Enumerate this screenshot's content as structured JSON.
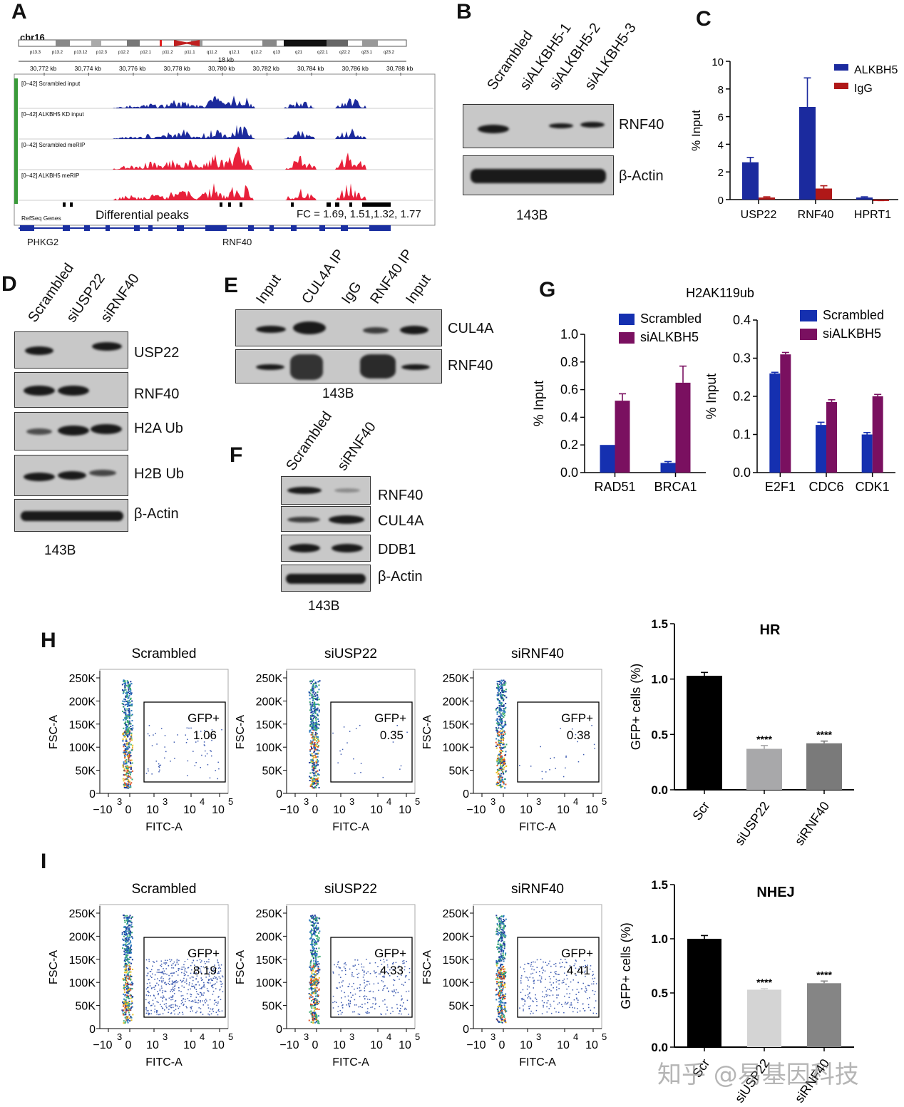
{
  "panels": {
    "A": "A",
    "B": "B",
    "C": "C",
    "D": "D",
    "E": "E",
    "F": "F",
    "G": "G",
    "H": "H",
    "I": "I"
  },
  "panelA": {
    "chrom": "chr16",
    "bands": [
      "p13.3",
      "p13.2",
      "p13.12",
      "p12.3",
      "p12.2",
      "p12.1",
      "p11.2",
      "p11.1",
      "q11.2",
      "q12.1",
      "q12.2",
      "q13",
      "q21",
      "q22.1",
      "q22.2",
      "q23.1",
      "q23.2"
    ],
    "scale": "18 kb",
    "coords": [
      "30,772 kb",
      "30,774 kb",
      "30,776 kb",
      "30,778 kb",
      "30,780 kb",
      "30,782 kb",
      "30,784 kb",
      "30,786 kb",
      "30,788 kb"
    ],
    "tracks": [
      {
        "range": "[0–42]",
        "name": "Scrambled input",
        "color": "#1c2a9c"
      },
      {
        "range": "[0–42]",
        "name": "ALKBH5 KD input",
        "color": "#1c2a9c"
      },
      {
        "range": "[0–42]",
        "name": "Scrambled meRIP",
        "color": "#e8203a"
      },
      {
        "range": "[0–42]",
        "name": "ALKBH5 meRIP",
        "color": "#e8203a"
      }
    ],
    "refseq": "RefSeq Genes",
    "diff_peaks": "Differential peaks",
    "fc": "FC = 1.69, 1.51,1.32,  1.77",
    "genes": [
      "PHKG2",
      "RNF40"
    ]
  },
  "panelB": {
    "lanes": [
      "Scrambled",
      "siALKBH5-1",
      "siALKBH5-2",
      "siALKBH5-3"
    ],
    "blots": [
      "RNF40",
      "β-Actin"
    ],
    "cell": "143B"
  },
  "panelD": {
    "lanes": [
      "Scrambled",
      "siUSP22",
      "siRNF40"
    ],
    "blots": [
      "USP22",
      "RNF40",
      "H2A Ub",
      "H2B Ub",
      "β-Actin"
    ],
    "cell": "143B"
  },
  "panelE": {
    "lanes": [
      "Input",
      "CUL4A IP",
      "IgG",
      "RNF40 IP",
      "Input"
    ],
    "blots": [
      "CUL4A",
      "RNF40"
    ],
    "cell": "143B"
  },
  "panelF": {
    "lanes": [
      "Scrambled",
      "siRNF40"
    ],
    "blots": [
      "RNF40",
      "CUL4A",
      "DDB1",
      "β-Actin"
    ],
    "cell": "143B"
  },
  "flow": {
    "xlabel": "FITC-A",
    "ylabel": "FSC-A",
    "yticks": [
      "250K",
      "200K",
      "150K",
      "100K",
      "50K",
      "0"
    ],
    "xticks": [
      "−10",
      "0",
      "10",
      "10",
      "10"
    ],
    "xexp": [
      "3",
      "",
      "3",
      "4",
      "5"
    ],
    "gate": "GFP+",
    "H": [
      {
        "title": "Scrambled",
        "value": "1.06"
      },
      {
        "title": "siUSP22",
        "value": "0.35"
      },
      {
        "title": "siRNF40",
        "value": "0.38"
      }
    ],
    "I": [
      {
        "title": "Scrambled",
        "value": "8.19"
      },
      {
        "title": "siUSP22",
        "value": "4.33"
      },
      {
        "title": "siRNF40",
        "value": "4.41"
      }
    ]
  },
  "watermark": "知乎 @易基因科技",
  "chart_data": [
    {
      "id": "C",
      "type": "bar",
      "categories": [
        "USP22",
        "RNF40",
        "HPRT1"
      ],
      "series": [
        {
          "name": "ALKBH5",
          "color": "#1b2a9e",
          "values": [
            2.7,
            6.7,
            0.15
          ],
          "errors": [
            0.35,
            2.1,
            0.05
          ]
        },
        {
          "name": "IgG",
          "color": "#b01818",
          "values": [
            0.15,
            0.8,
            -0.1
          ],
          "errors": [
            0.05,
            0.2,
            0.03
          ]
        }
      ],
      "ylabel": "% Input",
      "ylim": [
        0,
        10
      ],
      "yticks": [
        "0",
        "2",
        "4",
        "6",
        "8",
        "10"
      ],
      "legend": "top-right"
    },
    {
      "id": "G1",
      "type": "bar",
      "title": "H2AK119ub",
      "categories": [
        "RAD51",
        "BRCA1"
      ],
      "series": [
        {
          "name": "Scrambled",
          "color": "#1530b0",
          "values": [
            0.2,
            0.07
          ],
          "errors": [
            0,
            0.01
          ]
        },
        {
          "name": "siALKBH5",
          "color": "#7a1060",
          "values": [
            0.52,
            0.65
          ],
          "errors": [
            0.05,
            0.12
          ]
        }
      ],
      "ylabel": "% Input",
      "ylim": [
        0,
        1.0
      ],
      "yticks": [
        "0.0",
        "0.2",
        "0.4",
        "0.6",
        "0.8",
        "1.0"
      ],
      "legend": "top"
    },
    {
      "id": "G2",
      "type": "bar",
      "categories": [
        "E2F1",
        "CDC6",
        "CDK1"
      ],
      "series": [
        {
          "name": "Scrambled",
          "color": "#1530b0",
          "values": [
            0.26,
            0.125,
            0.1
          ],
          "errors": [
            0.003,
            0.007,
            0.005
          ]
        },
        {
          "name": "siALKBH5",
          "color": "#7a1060",
          "values": [
            0.31,
            0.185,
            0.2
          ],
          "errors": [
            0.005,
            0.006,
            0.005
          ]
        }
      ],
      "ylabel": "% Input",
      "ylim": [
        0,
        0.4
      ],
      "yticks": [
        "0.0",
        "0.1",
        "0.2",
        "0.3",
        "0.4"
      ],
      "legend": "top-right"
    },
    {
      "id": "H",
      "type": "bar",
      "title": "HR",
      "categories": [
        "Scr",
        "siUSP22",
        "siRNF40"
      ],
      "values": [
        1.03,
        0.37,
        0.42
      ],
      "errors": [
        0.03,
        0.03,
        0.02
      ],
      "colors": [
        "#000000",
        "#a8a8aa",
        "#7a7a7a"
      ],
      "sig": [
        "",
        "****",
        "****"
      ],
      "ylabel": "GFP+ cells (%)",
      "ylim": [
        0,
        1.5
      ],
      "yticks": [
        "0.0",
        "0.5",
        "1.0",
        "1.5"
      ]
    },
    {
      "id": "I",
      "type": "bar",
      "title": "NHEJ",
      "categories": [
        "Scr",
        "siUSP22",
        "siRNF40"
      ],
      "values": [
        1.0,
        0.53,
        0.59
      ],
      "errors": [
        0.03,
        0.01,
        0.02
      ],
      "colors": [
        "#000000",
        "#d4d4d4",
        "#858585"
      ],
      "sig": [
        "",
        "****",
        "****"
      ],
      "ylabel": "GFP+ cells (%)",
      "ylim": [
        0,
        1.5
      ],
      "yticks": [
        "0.0",
        "0.5",
        "1.0",
        "1.5"
      ]
    }
  ]
}
